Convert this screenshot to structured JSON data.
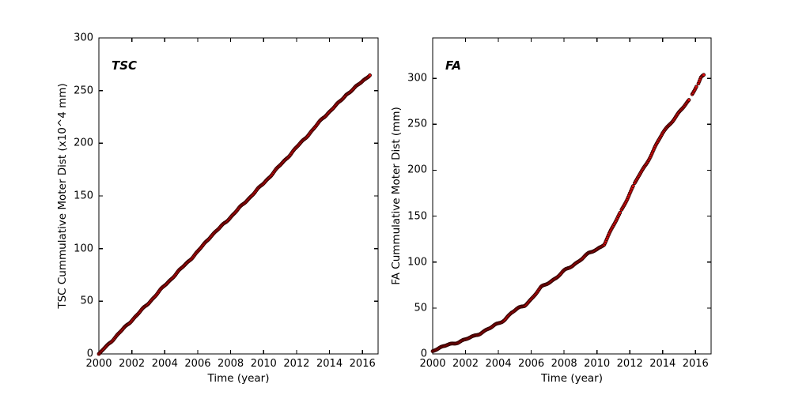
{
  "figure": {
    "background": "#ffffff",
    "axis_color": "#000000",
    "tick_label_color": "#000000",
    "marker_fill": "#df0d0d",
    "marker_edge": "#2a0000"
  },
  "chart_data": [
    {
      "type": "scatter",
      "title": "TSC",
      "xlabel": "Time (year)",
      "ylabel": "TSC Cummulative Moter Dist (x10^4 mm)",
      "xlim": [
        2000,
        2016.95
      ],
      "ylim": [
        0,
        300
      ],
      "xticks": [
        2000,
        2002,
        2004,
        2006,
        2008,
        2010,
        2012,
        2014,
        2016
      ],
      "yticks": [
        0,
        50,
        100,
        150,
        200,
        250,
        300
      ],
      "grid": false,
      "legend": null,
      "marker": "circle",
      "sample_step_years": 0.05,
      "segments": [
        [
          2000,
          2016.45
        ]
      ],
      "anchors": [
        [
          2000,
          0
        ],
        [
          2001,
          16
        ],
        [
          2002,
          32
        ],
        [
          2003,
          48
        ],
        [
          2004,
          65
        ],
        [
          2005,
          81
        ],
        [
          2006,
          97
        ],
        [
          2006.8,
          112
        ],
        [
          2007.3,
          119
        ],
        [
          2008,
          130
        ],
        [
          2009,
          146
        ],
        [
          2010,
          162
        ],
        [
          2011,
          179
        ],
        [
          2012,
          196
        ],
        [
          2013,
          213
        ],
        [
          2013.6,
          224
        ],
        [
          2014,
          230
        ],
        [
          2014.6,
          239
        ],
        [
          2015,
          246
        ],
        [
          2015.5,
          252
        ],
        [
          2016,
          259
        ],
        [
          2016.45,
          265
        ]
      ]
    },
    {
      "type": "scatter",
      "title": "FA",
      "xlabel": "Time (year)",
      "ylabel": "FA Cummulative Moter Dist (mm)",
      "xlim": [
        2000,
        2016.95
      ],
      "ylim": [
        0,
        344
      ],
      "xticks": [
        2000,
        2002,
        2004,
        2006,
        2008,
        2010,
        2012,
        2014,
        2016
      ],
      "yticks": [
        0,
        50,
        100,
        150,
        200,
        250,
        300
      ],
      "grid": false,
      "legend": null,
      "marker": "circle",
      "sample_step_years": 0.05,
      "segments": [
        [
          2000,
          2011.42
        ],
        [
          2011.5,
          2012.24
        ],
        [
          2012.3,
          2015.62
        ],
        [
          2015.8,
          2016.05
        ],
        [
          2016.18,
          2016.33
        ],
        [
          2016.4,
          2016.52
        ]
      ],
      "anchors": [
        [
          2000,
          3
        ],
        [
          2000.5,
          7
        ],
        [
          2001,
          10
        ],
        [
          2001.5,
          13
        ],
        [
          2002,
          15.5
        ],
        [
          2002.5,
          19
        ],
        [
          2003,
          24
        ],
        [
          2003.5,
          28
        ],
        [
          2004,
          33
        ],
        [
          2004.4,
          38
        ],
        [
          2004.8,
          45
        ],
        [
          2005.2,
          49
        ],
        [
          2005.6,
          53
        ],
        [
          2006,
          60
        ],
        [
          2006.3,
          66
        ],
        [
          2006.6,
          72
        ],
        [
          2007,
          77
        ],
        [
          2007.5,
          83
        ],
        [
          2008,
          90
        ],
        [
          2008.5,
          96
        ],
        [
          2009,
          103
        ],
        [
          2009.5,
          109
        ],
        [
          2010,
          114
        ],
        [
          2010.45,
          120
        ],
        [
          2011,
          139
        ],
        [
          2011.5,
          157
        ],
        [
          2012,
          175
        ],
        [
          2012.5,
          192
        ],
        [
          2013,
          207
        ],
        [
          2013.5,
          224
        ],
        [
          2014,
          240
        ],
        [
          2014.5,
          252
        ],
        [
          2015,
          263
        ],
        [
          2015.3,
          269
        ],
        [
          2015.62,
          276
        ],
        [
          2015.8,
          283
        ],
        [
          2016.05,
          292
        ],
        [
          2016.18,
          295
        ],
        [
          2016.33,
          301
        ],
        [
          2016.38,
          302
        ],
        [
          2016.52,
          304
        ]
      ]
    }
  ]
}
